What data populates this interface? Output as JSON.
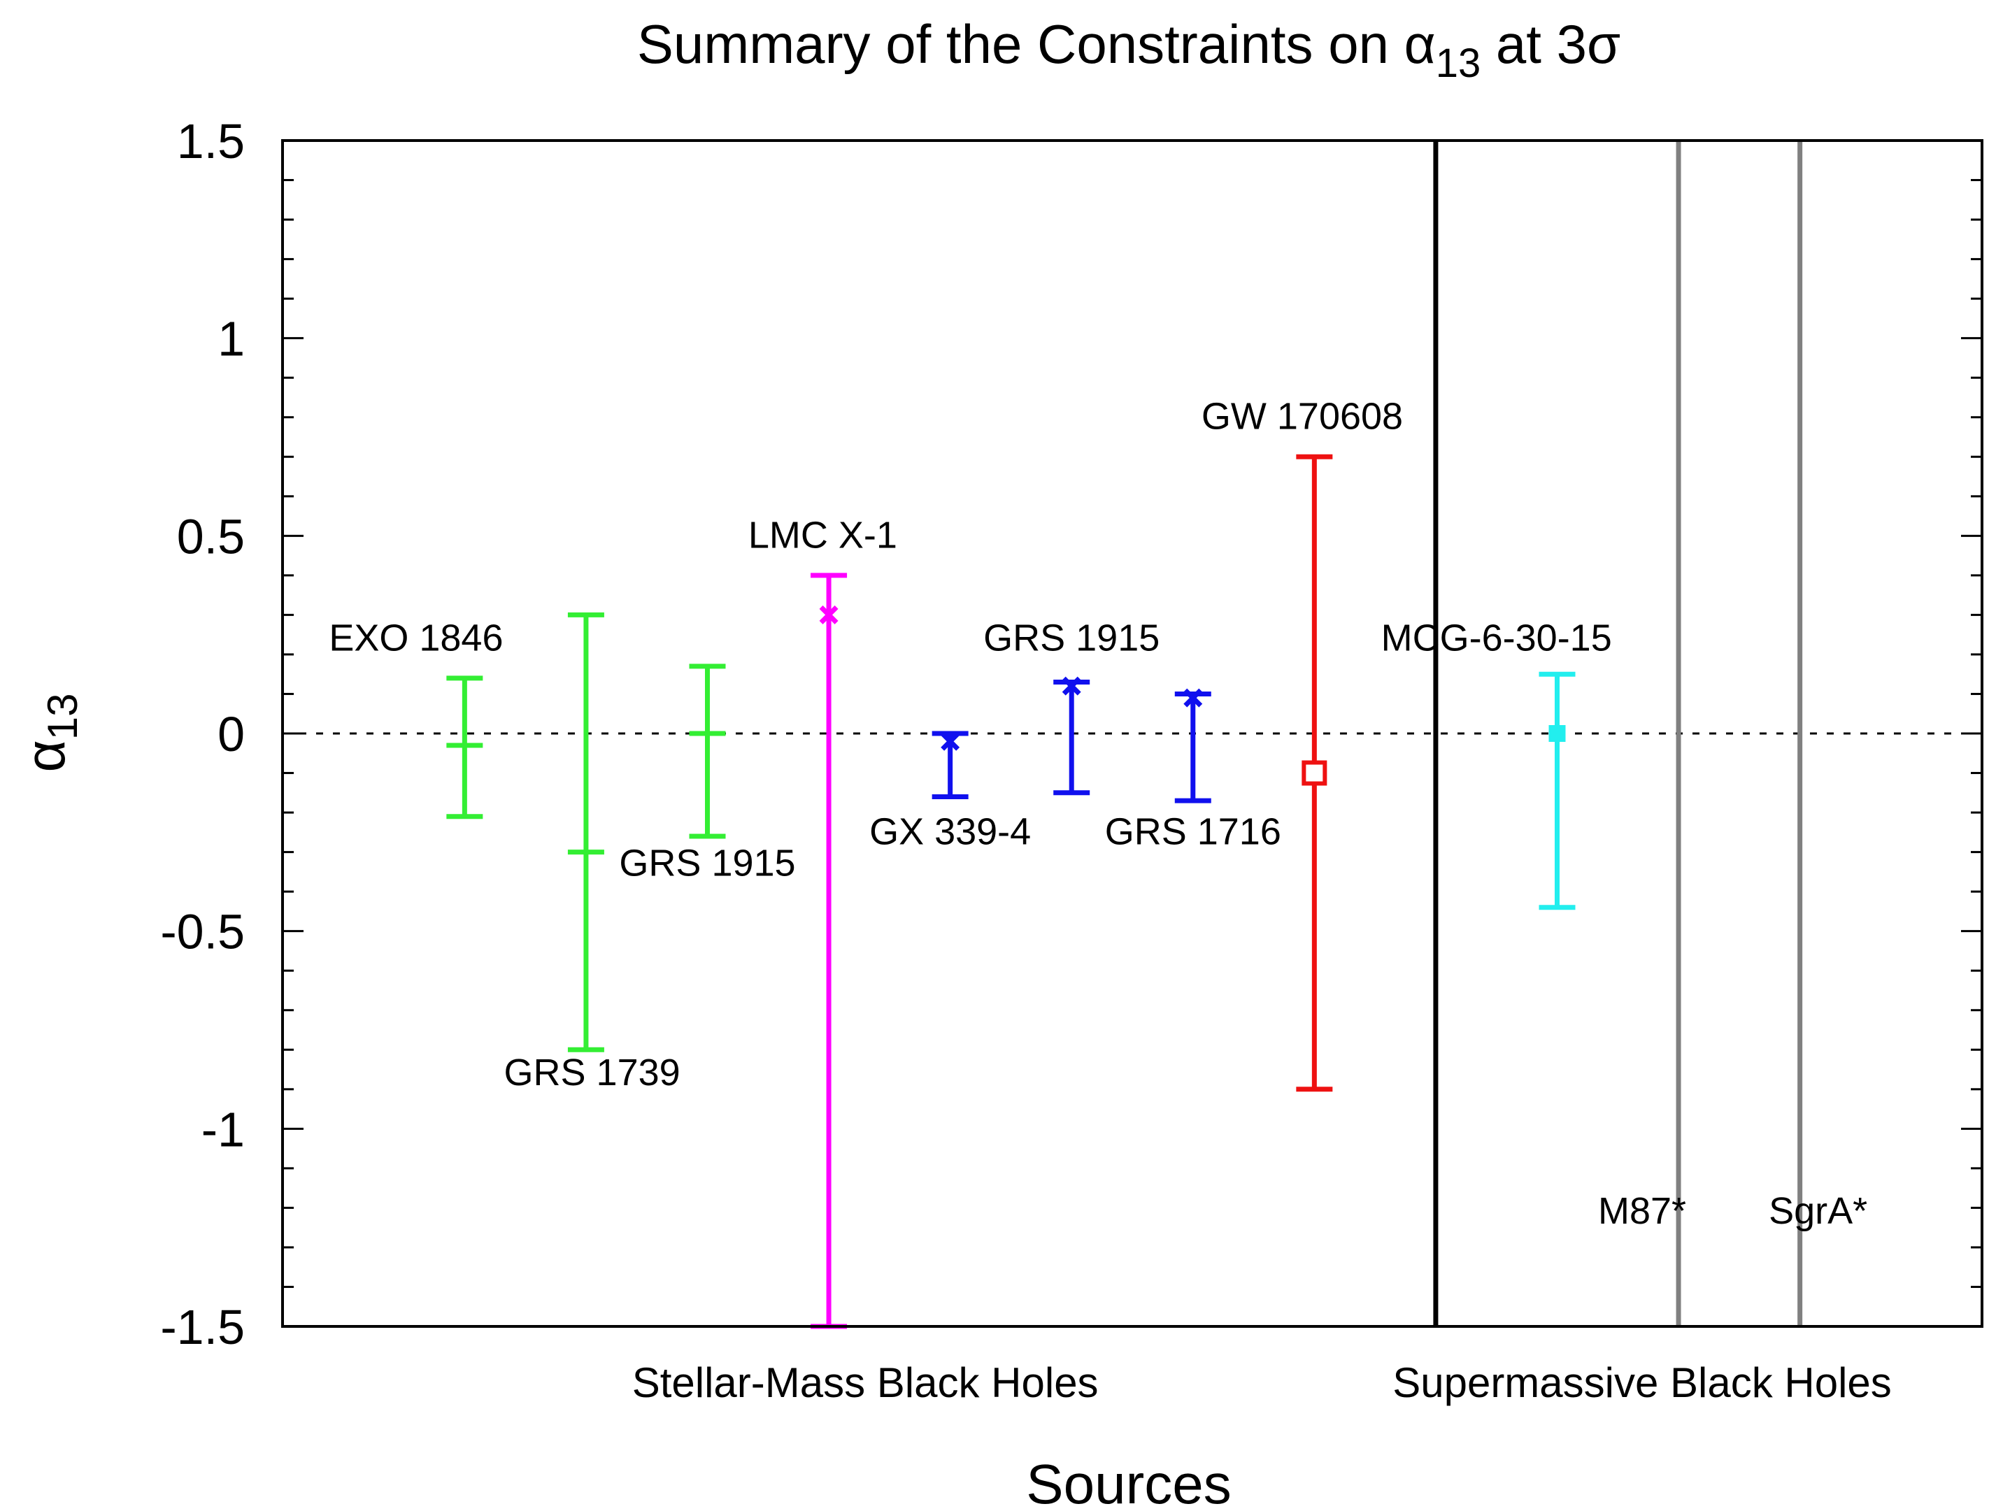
{
  "chart_data": {
    "type": "errorbar",
    "title_main": "Summary of the Constraints on ",
    "title_symbol": "α",
    "title_sub": "13",
    "title_tail": " at 3",
    "title_sigma": "σ",
    "xlabel": "Sources",
    "ylabel_symbol": "α",
    "ylabel_sub": "13",
    "ylim": [
      -1.5,
      1.5
    ],
    "y_ticks": [
      {
        "value": 1.5,
        "label": "1.5"
      },
      {
        "value": 1,
        "label": "1"
      },
      {
        "value": 0.5,
        "label": "0.5"
      },
      {
        "value": 0,
        "label": "0"
      },
      {
        "value": -0.5,
        "label": "-0.5"
      },
      {
        "value": -1,
        "label": "-1"
      },
      {
        "value": -1.5,
        "label": "-1.5"
      }
    ],
    "x_range": [
      0,
      14
    ],
    "reference_line": {
      "y": 0,
      "style": "dotted"
    },
    "groups": [
      {
        "label": "Stellar-Mass Black Holes",
        "x_center": 4.8
      },
      {
        "label": "Supermassive Black Holes",
        "x_center": 11.2
      }
    ],
    "separators": [
      {
        "x": 9.5,
        "color": "#000000"
      },
      {
        "x": 11.5,
        "color": "#808080"
      },
      {
        "x": 12.5,
        "color": "#808080"
      }
    ],
    "points": [
      {
        "name": "EXO 1846",
        "x": 1.5,
        "y": -0.03,
        "low": -0.21,
        "high": 0.14,
        "color": "#33ee33",
        "marker": "dash",
        "label_x": 1.1,
        "label_y": 0.21
      },
      {
        "name": "GRS 1739",
        "x": 2.5,
        "y": -0.3,
        "low": -0.8,
        "high": 0.3,
        "color": "#33ee33",
        "marker": "dash",
        "label_x": 2.55,
        "label_y": -0.89
      },
      {
        "name": "GRS 1915",
        "x": 3.5,
        "y": 0.0,
        "low": -0.26,
        "high": 0.17,
        "color": "#33ee33",
        "marker": "dash",
        "label_x": 3.5,
        "label_y": -0.36
      },
      {
        "name": "LMC X-1",
        "x": 4.5,
        "y": 0.3,
        "low": -1.5,
        "high": 0.4,
        "color": "#ff00ff",
        "marker": "cross",
        "label_x": 4.45,
        "label_y": 0.47
      },
      {
        "name": "GX 339-4",
        "x": 5.5,
        "y": -0.02,
        "low": -0.16,
        "high": 0.0,
        "color": "#1010ee",
        "marker": "cross",
        "label_x": 5.5,
        "label_y": -0.28
      },
      {
        "name": "GRS 1915",
        "x": 6.5,
        "y": 0.12,
        "low": -0.15,
        "high": 0.13,
        "color": "#1010ee",
        "marker": "cross",
        "label_x": 6.5,
        "label_y": 0.21
      },
      {
        "name": "GRS 1716",
        "x": 7.5,
        "y": 0.09,
        "low": -0.17,
        "high": 0.1,
        "color": "#1010ee",
        "marker": "cross",
        "label_x": 7.5,
        "label_y": -0.28
      },
      {
        "name": "GW 170608",
        "x": 8.5,
        "y": -0.1,
        "low": -0.9,
        "high": 0.7,
        "color": "#ee1111",
        "marker": "square",
        "label_x": 8.4,
        "label_y": 0.77
      },
      {
        "name": "MCG-6-30-15",
        "x": 10.5,
        "y": 0.0,
        "low": -0.44,
        "high": 0.15,
        "color": "#22eeee",
        "marker": "filled-square",
        "label_x": 10.0,
        "label_y": 0.21
      }
    ],
    "vertical_labels": [
      {
        "name": "M87*",
        "label_x": 11.2,
        "label_y": -1.24
      },
      {
        "name": "SgrA*",
        "label_x": 12.65,
        "label_y": -1.24
      }
    ]
  }
}
